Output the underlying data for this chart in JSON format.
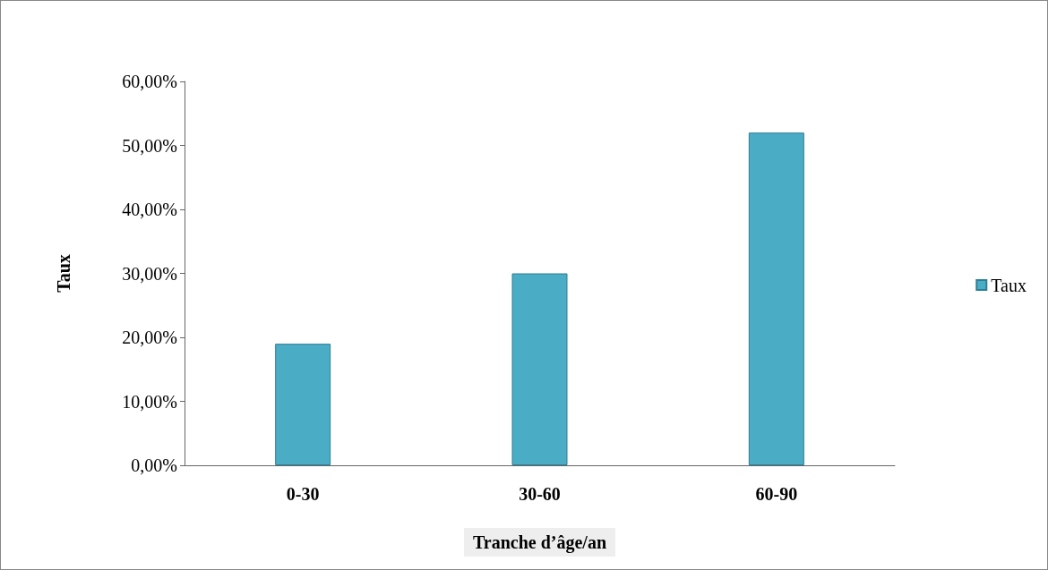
{
  "chart_data": {
    "type": "bar",
    "xlabel": "Tranche d’âge/an",
    "ylabel": "Taux",
    "categories": [
      "0-30",
      "30-60",
      "60-90"
    ],
    "series": [
      {
        "name": "Taux",
        "color": "#4bacc6",
        "values": [
          19,
          30,
          52
        ]
      }
    ],
    "ylim": [
      0,
      60
    ],
    "yticks": [
      {
        "value": 0,
        "label": "0,00%"
      },
      {
        "value": 10,
        "label": "10,00%"
      },
      {
        "value": 20,
        "label": "20,00%"
      },
      {
        "value": 30,
        "label": "30,00%"
      },
      {
        "value": 40,
        "label": "40,00%"
      },
      {
        "value": 50,
        "label": "50,00%"
      },
      {
        "value": 60,
        "label": "60,00%"
      }
    ],
    "grid": false,
    "legend": "right"
  }
}
